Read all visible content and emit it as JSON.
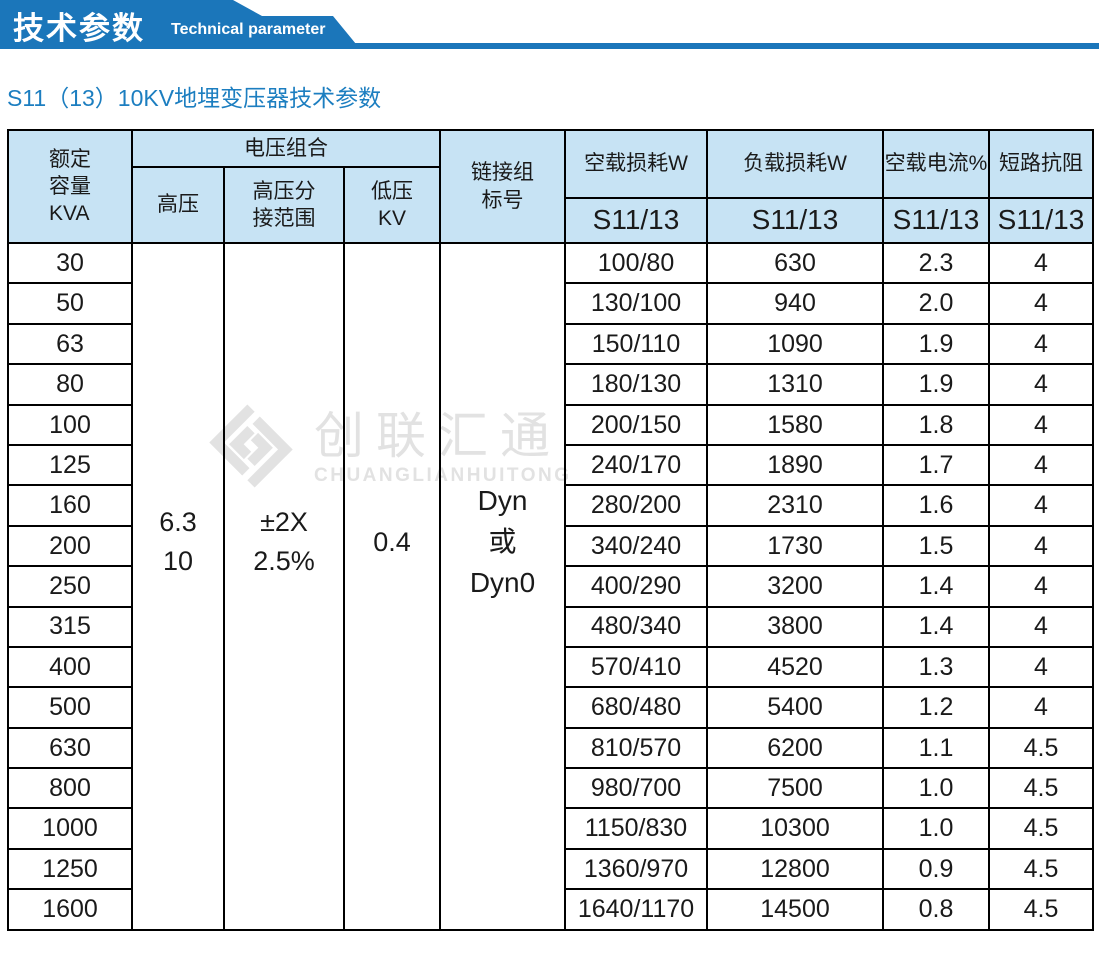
{
  "banner": {
    "title": "技术参数",
    "subtitle": "Technical parameter"
  },
  "page": {
    "title": "S11（13）10KV地埋变压器技术参数"
  },
  "watermark": {
    "cn": "创联汇通",
    "en": "CHUANGLIANHUITONG"
  },
  "colors": {
    "banner_blue": "#1b76ba",
    "title_blue": "#1c7ec0",
    "header_bg": "#c7e3f4",
    "border": "#000000",
    "watermark_gray": "#e2e2e2"
  },
  "table": {
    "headers": {
      "capacity": "额定\n容量\nKVA",
      "voltage_group": "电压组合",
      "hv": "高压",
      "tap_range": "高压分\n接范围",
      "lv": "低压\nKV",
      "link_group": "链接组\n标号",
      "no_load_loss": "空载损耗W",
      "load_loss": "负载损耗W",
      "no_load_current": "空载电流%",
      "impedance": "短路抗阻",
      "series_no_load_loss": "S11/13",
      "series_load_loss": "S11/13",
      "series_current": "S11/13",
      "series_impedance": "S11/13"
    },
    "merged": {
      "hv": "6.3\n10",
      "tap": "±2X\n2.5%",
      "lv": "0.4",
      "link": "Dyn\n或\nDyn0"
    },
    "rows": [
      {
        "capacity": "30",
        "no_load_loss": "100/80",
        "load_loss": "630",
        "current": "2.3",
        "impedance": "4"
      },
      {
        "capacity": "50",
        "no_load_loss": "130/100",
        "load_loss": "940",
        "current": "2.0",
        "impedance": "4"
      },
      {
        "capacity": "63",
        "no_load_loss": "150/110",
        "load_loss": "1090",
        "current": "1.9",
        "impedance": "4"
      },
      {
        "capacity": "80",
        "no_load_loss": "180/130",
        "load_loss": "1310",
        "current": "1.9",
        "impedance": "4"
      },
      {
        "capacity": "100",
        "no_load_loss": "200/150",
        "load_loss": "1580",
        "current": "1.8",
        "impedance": "4"
      },
      {
        "capacity": "125",
        "no_load_loss": "240/170",
        "load_loss": "1890",
        "current": "1.7",
        "impedance": "4"
      },
      {
        "capacity": "160",
        "no_load_loss": "280/200",
        "load_loss": "2310",
        "current": "1.6",
        "impedance": "4"
      },
      {
        "capacity": "200",
        "no_load_loss": "340/240",
        "load_loss": "1730",
        "current": "1.5",
        "impedance": "4"
      },
      {
        "capacity": "250",
        "no_load_loss": "400/290",
        "load_loss": "3200",
        "current": "1.4",
        "impedance": "4"
      },
      {
        "capacity": "315",
        "no_load_loss": "480/340",
        "load_loss": "3800",
        "current": "1.4",
        "impedance": "4"
      },
      {
        "capacity": "400",
        "no_load_loss": "570/410",
        "load_loss": "4520",
        "current": "1.3",
        "impedance": "4"
      },
      {
        "capacity": "500",
        "no_load_loss": "680/480",
        "load_loss": "5400",
        "current": "1.2",
        "impedance": "4"
      },
      {
        "capacity": "630",
        "no_load_loss": "810/570",
        "load_loss": "6200",
        "current": "1.1",
        "impedance": "4.5"
      },
      {
        "capacity": "800",
        "no_load_loss": "980/700",
        "load_loss": "7500",
        "current": "1.0",
        "impedance": "4.5"
      },
      {
        "capacity": "1000",
        "no_load_loss": "1150/830",
        "load_loss": "10300",
        "current": "1.0",
        "impedance": "4.5"
      },
      {
        "capacity": "1250",
        "no_load_loss": "1360/970",
        "load_loss": "12800",
        "current": "0.9",
        "impedance": "4.5"
      },
      {
        "capacity": "1600",
        "no_load_loss": "1640/1170",
        "load_loss": "14500",
        "current": "0.8",
        "impedance": "4.5"
      }
    ]
  }
}
